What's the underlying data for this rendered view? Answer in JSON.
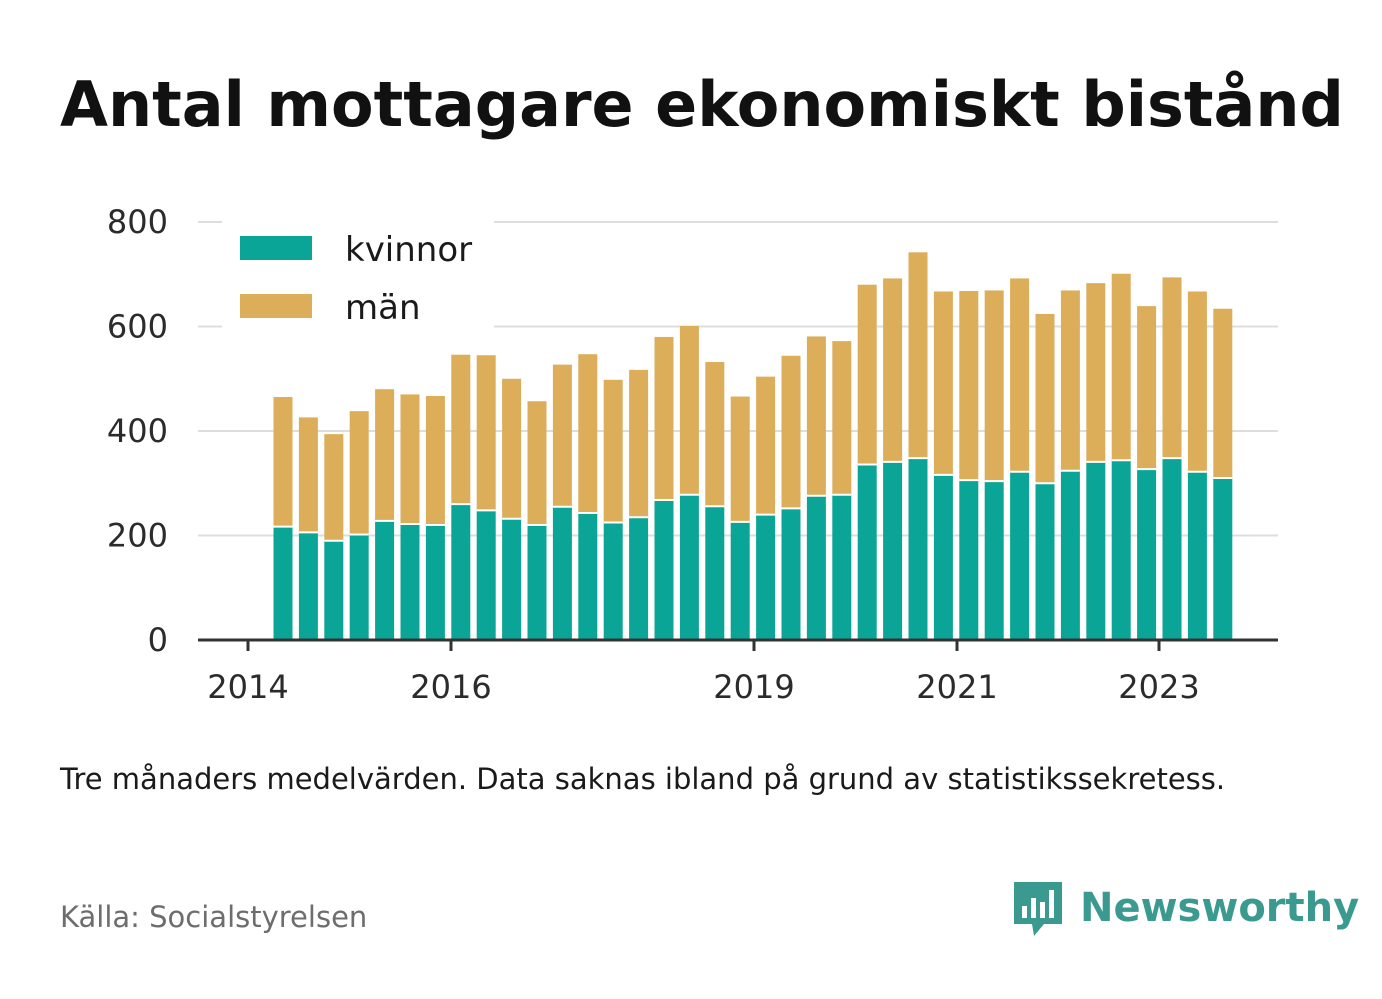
{
  "title": "Antal mottagare ekonomiskt bistånd",
  "note": "Tre månaders medelvärden. Data saknas ibland på grund av statistikssekretess.",
  "source": "Källa: Socialstyrelsen",
  "logo": {
    "text": "Newsworthy",
    "icon": "newsworthy-chart-icon",
    "color": "#3a9a8f"
  },
  "chart_data": {
    "type": "bar",
    "stacked": true,
    "grid": true,
    "legend_position": "top-left",
    "ylim": [
      0,
      800
    ],
    "yticks": [
      0,
      200,
      400,
      600,
      800
    ],
    "xticks": [
      "2014",
      "2016",
      "2019",
      "2021",
      "2023"
    ],
    "series": [
      {
        "name": "kvinnor",
        "color": "#0aa596",
        "values": [
          217,
          206,
          190,
          202,
          228,
          222,
          220,
          260,
          248,
          232,
          220,
          255,
          243,
          225,
          235,
          268,
          278,
          256,
          226,
          240,
          252,
          276,
          278,
          336,
          341,
          348,
          316,
          306,
          304,
          322,
          300,
          324,
          341,
          344,
          327,
          348,
          322,
          310
        ]
      },
      {
        "name": "män",
        "color": "#dcae5a",
        "values": [
          248,
          220,
          204,
          236,
          252,
          248,
          247,
          286,
          297,
          268,
          237,
          272,
          304,
          273,
          282,
          312,
          323,
          276,
          240,
          264,
          292,
          305,
          294,
          344,
          351,
          394,
          351,
          362,
          365,
          370,
          324,
          345,
          342,
          357,
          312,
          346,
          345,
          324
        ]
      }
    ]
  }
}
